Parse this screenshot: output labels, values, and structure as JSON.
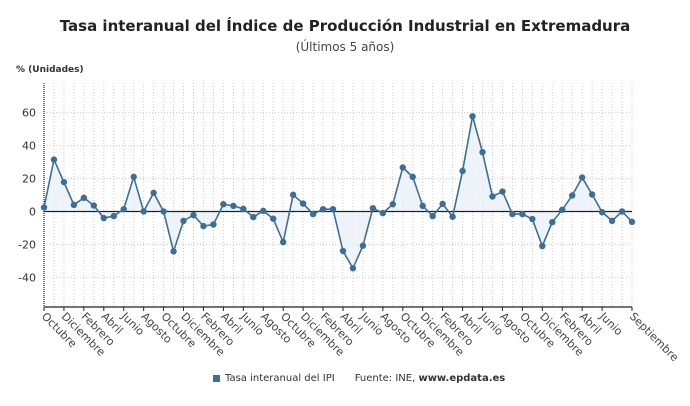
{
  "chart_data": {
    "type": "line",
    "title": "Tasa interanual del Índice de Producción Industrial en Extremadura",
    "subtitle": "(Últimos 5 años)",
    "ylabel": "% (Unidades)",
    "xlabel": "",
    "ylim": [
      -58,
      78
    ],
    "yticks": [
      -40,
      -20,
      0,
      20,
      40,
      60
    ],
    "grid": true,
    "legend_position": "bottom",
    "x_tick_labels": [
      "Octubre",
      "Diciembre",
      "Febrero",
      "Abril",
      "Junio",
      "Agosto",
      "Octubre",
      "Diciembre",
      "Febrero",
      "Abril",
      "Junio",
      "Agosto",
      "Octubre",
      "Diciembre",
      "Febrero",
      "Abril",
      "Junio",
      "Agosto",
      "Octubre",
      "Diciembre",
      "Febrero",
      "Abril",
      "Junio",
      "Agosto",
      "Octubre",
      "Diciembre",
      "Febrero",
      "Abril",
      "Junio",
      "Septiembre"
    ],
    "series": [
      {
        "name": "Tasa interanual del IPI",
        "color": "#3d6f96",
        "values": [
          2.4,
          31.5,
          17.8,
          4,
          8.3,
          3.6,
          -4,
          -2.8,
          1.4,
          21,
          0,
          11.3,
          0,
          -24.2,
          -5.7,
          -2.2,
          -8.9,
          -7.9,
          4.4,
          3.4,
          1.6,
          -3.4,
          0.4,
          -4.4,
          -18.6,
          10.1,
          4.8,
          -1.6,
          1.4,
          1.4,
          -24,
          -34.5,
          -20.8,
          2,
          -1,
          4.4,
          26.7,
          21,
          3.4,
          -2.8,
          4.6,
          -3.2,
          24.6,
          57.8,
          36,
          9.1,
          12.1,
          -1.6,
          -1.6,
          -4.6,
          -21,
          -6.5,
          1,
          9.7,
          20.6,
          10.3,
          -0.4,
          -5.7,
          0,
          -6.3
        ]
      }
    ]
  },
  "legend": {
    "series_label": "Tasa interanual del IPI",
    "source_prefix": "Fuente: INE, ",
    "source_site": "www.epdata.es"
  }
}
